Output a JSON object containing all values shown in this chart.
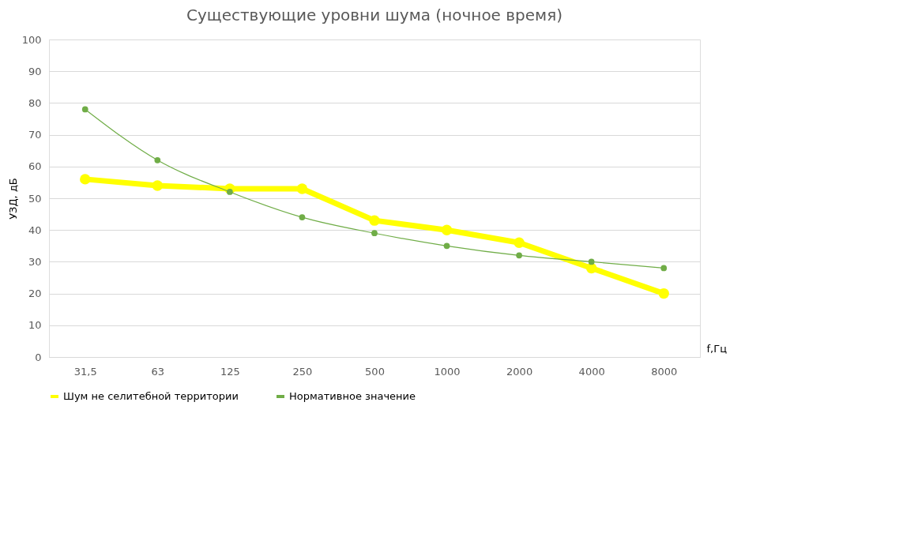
{
  "chart_data": {
    "type": "line",
    "title": "Существующие уровни шума (ночное время)",
    "xlabel": "f,Гц",
    "ylabel": "УЗД, дБ",
    "categories": [
      "31,5",
      "63",
      "125",
      "250",
      "500",
      "1000",
      "2000",
      "4000",
      "8000"
    ],
    "series": [
      {
        "name": "Шум не селитебной территории",
        "color": "#ffff00",
        "values": [
          56,
          54,
          53,
          53,
          43,
          40,
          36,
          28,
          20
        ]
      },
      {
        "name": "Нормативное значение",
        "color": "#70ad47",
        "values": [
          78,
          62,
          52,
          44,
          39,
          35,
          32,
          30,
          28
        ]
      }
    ],
    "ylim": [
      0,
      100
    ],
    "yticks": [
      0,
      10,
      20,
      30,
      40,
      50,
      60,
      70,
      80,
      90,
      100
    ],
    "grid": "y",
    "legend": "bottom",
    "marker": "circle",
    "line_style": "solid"
  }
}
